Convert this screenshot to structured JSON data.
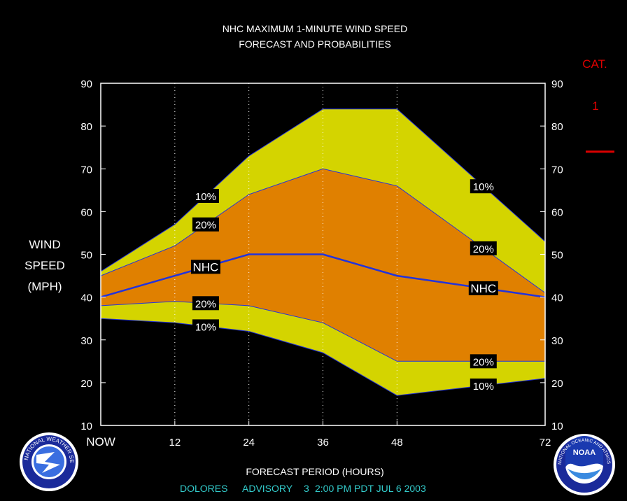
{
  "chart_data": {
    "type": "area",
    "title": "NHC MAXIMUM 1-MINUTE WIND SPEED",
    "subtitle": "FORECAST AND PROBABILITIES",
    "xlabel": "FORECAST PERIOD (HOURS)",
    "ylabel": [
      "WIND",
      "SPEED",
      "(MPH)"
    ],
    "x_ticks": [
      {
        "x": 0,
        "label": "NOW"
      },
      {
        "x": 12,
        "label": "12"
      },
      {
        "x": 24,
        "label": "24"
      },
      {
        "x": 36,
        "label": "36"
      },
      {
        "x": 48,
        "label": "48"
      },
      {
        "x": 72,
        "label": "72"
      }
    ],
    "y_ticks": [
      10,
      20,
      30,
      40,
      50,
      60,
      70,
      80,
      90
    ],
    "xlim": [
      0,
      72
    ],
    "ylim": [
      10,
      90
    ],
    "grid": "vertical dotted at 12, 24, 36, 48",
    "x": [
      0,
      12,
      24,
      36,
      48,
      72
    ],
    "series": [
      {
        "id": "upper10",
        "label": "10%",
        "values": [
          46,
          57,
          73,
          84,
          84,
          53
        ]
      },
      {
        "id": "upper20",
        "label": "20%",
        "values": [
          45,
          52,
          64,
          70,
          66,
          41
        ]
      },
      {
        "id": "nhc",
        "label": "NHC",
        "values": [
          40,
          45,
          50,
          50,
          45,
          40
        ]
      },
      {
        "id": "lower20",
        "label": "20%",
        "values": [
          38,
          39,
          38,
          34,
          25,
          25
        ]
      },
      {
        "id": "lower10",
        "label": "10%",
        "values": [
          35,
          34,
          32,
          27,
          17,
          21
        ]
      }
    ],
    "series_labels": [
      {
        "series": "upper10",
        "x": 17,
        "text": "10%"
      },
      {
        "series": "upper20",
        "x": 17,
        "text": "20%"
      },
      {
        "series": "nhc",
        "x": 17,
        "text": "NHC"
      },
      {
        "series": "lower20",
        "x": 17,
        "text": "20%"
      },
      {
        "series": "lower10",
        "x": 17,
        "text": "10%"
      },
      {
        "series": "upper10",
        "x": 62,
        "text": "10%"
      },
      {
        "series": "upper20",
        "x": 62,
        "text": "20%"
      },
      {
        "series": "nhc",
        "x": 62,
        "text": "NHC"
      },
      {
        "series": "lower20",
        "x": 62,
        "text": "20%"
      },
      {
        "series": "lower10",
        "x": 62,
        "text": "10%"
      }
    ],
    "category_scale": {
      "label": "CAT.",
      "category": "1",
      "threshold_mph": 74
    }
  },
  "colors": {
    "band_outer": "#d4d400",
    "band_inner": "#e08000",
    "nhc_line": "#2233dd",
    "edge_line": "#2233dd",
    "category": "#dd0000",
    "footer": "#33cccc",
    "frame": "#ffffff"
  },
  "footer": {
    "storm": "DOLORES",
    "advisory": "ADVISORY",
    "number": "3",
    "time": "2:00 PM PDT JUL 6 2003"
  },
  "logos": {
    "left": "NATIONAL WEATHER SERVICE",
    "right_center": "NOAA",
    "right_ring": "NATIONAL OCEANIC AND ATMOSPHERIC ADMINISTRATION · U.S. DEPARTMENT OF COMMERCE"
  }
}
